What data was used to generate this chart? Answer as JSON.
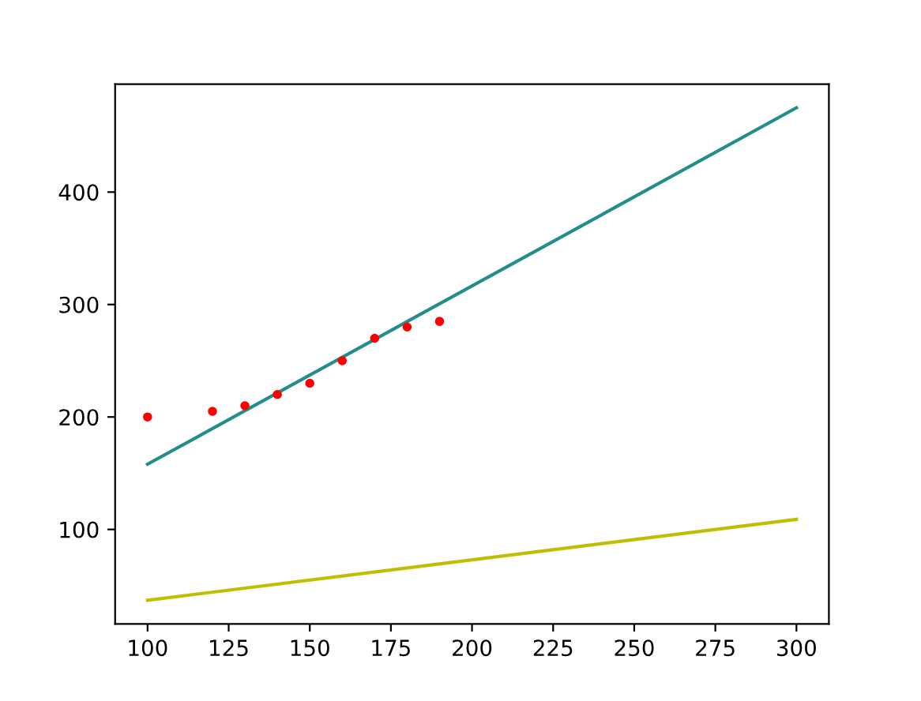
{
  "chart_data": {
    "type": "line",
    "xlim": [
      90,
      310
    ],
    "ylim": [
      16,
      496
    ],
    "xticks": [
      100,
      125,
      150,
      175,
      200,
      225,
      250,
      275,
      300
    ],
    "yticks": [
      100,
      200,
      300,
      400
    ],
    "grid": false,
    "series": [
      {
        "type": "scatter",
        "color": "#ff0000",
        "marker": "circle",
        "x": [
          100,
          120,
          130,
          140,
          150,
          160,
          170,
          180,
          190
        ],
        "values": [
          200,
          205,
          210,
          220,
          230,
          250,
          270,
          280,
          285
        ]
      },
      {
        "color": "#238c8c",
        "marker": "none",
        "x": [
          100,
          300
        ],
        "values": [
          158,
          475
        ]
      },
      {
        "color": "#bfbf00",
        "marker": "none",
        "x": [
          100,
          300
        ],
        "values": [
          37,
          109
        ]
      }
    ]
  }
}
